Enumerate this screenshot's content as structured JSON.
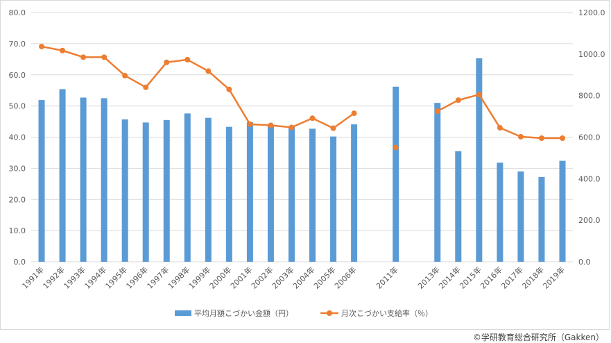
{
  "chart_data": {
    "type": "bar+line",
    "categories": [
      "1991年",
      "1992年",
      "1993年",
      "1994年",
      "1995年",
      "1996年",
      "1997年",
      "1998年",
      "1999年",
      "2000年",
      "2001年",
      "2002年",
      "2003年",
      "2004年",
      "2005年",
      "2006年",
      "",
      "2011年",
      "",
      "2013年",
      "2014年",
      "2015年",
      "2016年",
      "2017年",
      "2018年",
      "2019年"
    ],
    "series": [
      {
        "name": "平均月額こづかい金額（円）",
        "type": "bar",
        "axis": "left",
        "color": "#5B9BD5",
        "values": [
          51.9,
          55.4,
          52.7,
          52.5,
          45.7,
          44.7,
          45.5,
          47.6,
          46.2,
          43.3,
          44.8,
          43.6,
          43.6,
          42.7,
          40.2,
          44.1,
          null,
          56.2,
          null,
          51.0,
          35.5,
          65.3,
          31.8,
          29.0,
          27.2,
          32.4
        ]
      },
      {
        "name": "月次こづかい支給率（％）",
        "type": "line",
        "axis": "right",
        "color": "#ED7D31",
        "values": [
          1036,
          1017,
          985,
          985,
          896,
          840,
          960,
          973,
          918,
          830,
          662,
          657,
          647,
          691,
          643,
          715,
          null,
          550,
          null,
          725,
          778,
          805,
          645,
          602,
          595,
          595
        ]
      }
    ],
    "y_left": {
      "min": 0,
      "max": 80,
      "step": 10,
      "ticks": [
        "0.0",
        "10.0",
        "20.0",
        "30.0",
        "40.0",
        "50.0",
        "60.0",
        "70.0",
        "80.0"
      ]
    },
    "y_right": {
      "min": 0,
      "max": 1200,
      "step": 200,
      "ticks": [
        "0.0",
        "200.0",
        "400.0",
        "600.0",
        "800.0",
        "1000.0",
        "1200.0"
      ]
    },
    "grid": true,
    "legend_position": "bottom"
  },
  "credit": "©学研教育総合研究所（Gakken）"
}
